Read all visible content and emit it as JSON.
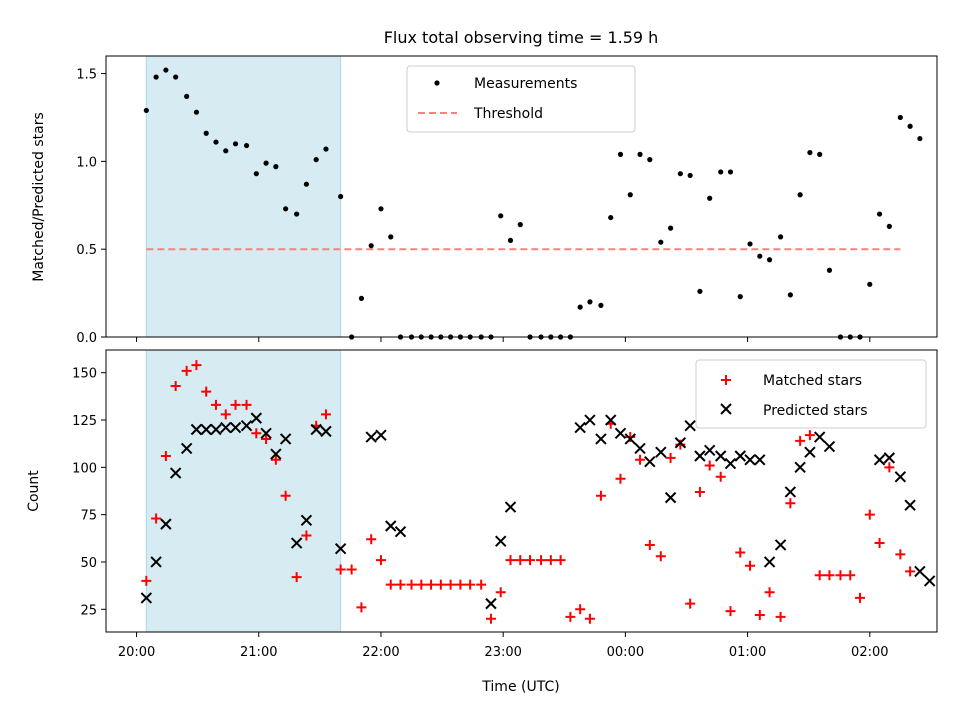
{
  "chart_data": {
    "title": "Flux total observing time = 1.59 h",
    "xlabel": "Time (UTC)",
    "x_ticks": [
      "20:00",
      "21:00",
      "22:00",
      "23:00",
      "00:00",
      "01:00",
      "02:00"
    ],
    "x_tick_hours": [
      0,
      1,
      2,
      3,
      4,
      5,
      6
    ],
    "x_note": "x values are hours after 20:00 UTC",
    "xlim": [
      -0.25,
      6.55
    ],
    "shaded_span": [
      0.08,
      1.67
    ],
    "colors": {
      "shade": "#add8e6",
      "matched": "#ff0000",
      "predicted": "#000000",
      "threshold": "#ff7f7f",
      "measurement": "#000000"
    },
    "panels": [
      {
        "type": "scatter",
        "ylabel": "Matched/Predicted stars",
        "ylim": [
          0,
          1.6
        ],
        "y_ticks": [
          0.0,
          0.5,
          1.0,
          1.5
        ],
        "y_tick_labels": [
          "0.0",
          "0.5",
          "1.0",
          "1.5"
        ],
        "legend_position": "top-center",
        "threshold": {
          "name": "Threshold",
          "y": 0.5,
          "x_range": [
            0.08,
            6.25
          ]
        },
        "series": [
          {
            "name": "Measurements",
            "points": [
              [
                0.08,
                1.29
              ],
              [
                0.16,
                1.48
              ],
              [
                0.24,
                1.52
              ],
              [
                0.32,
                1.48
              ],
              [
                0.41,
                1.37
              ],
              [
                0.49,
                1.28
              ],
              [
                0.57,
                1.16
              ],
              [
                0.65,
                1.11
              ],
              [
                0.73,
                1.06
              ],
              [
                0.81,
                1.1
              ],
              [
                0.9,
                1.09
              ],
              [
                0.98,
                0.93
              ],
              [
                1.06,
                0.99
              ],
              [
                1.14,
                0.97
              ],
              [
                1.22,
                0.73
              ],
              [
                1.31,
                0.7
              ],
              [
                1.39,
                0.87
              ],
              [
                1.47,
                1.01
              ],
              [
                1.55,
                1.07
              ],
              [
                1.67,
                0.8
              ],
              [
                1.76,
                0
              ],
              [
                1.84,
                0.22
              ],
              [
                1.92,
                0.52
              ],
              [
                2,
                0.73
              ],
              [
                2.08,
                0.57
              ],
              [
                2.16,
                0
              ],
              [
                2.25,
                0
              ],
              [
                2.33,
                0
              ],
              [
                2.41,
                0
              ],
              [
                2.49,
                0
              ],
              [
                2.57,
                0
              ],
              [
                2.65,
                0
              ],
              [
                2.73,
                0
              ],
              [
                2.82,
                0
              ],
              [
                2.9,
                0
              ],
              [
                2.98,
                0.69
              ],
              [
                3.06,
                0.55
              ],
              [
                3.14,
                0.64
              ],
              [
                3.22,
                0
              ],
              [
                3.31,
                0
              ],
              [
                3.39,
                0
              ],
              [
                3.47,
                0
              ],
              [
                3.55,
                0
              ],
              [
                3.63,
                0.17
              ],
              [
                3.71,
                0.2
              ],
              [
                3.8,
                0.18
              ],
              [
                3.88,
                0.68
              ],
              [
                3.96,
                1.04
              ],
              [
                4.04,
                0.81
              ],
              [
                4.12,
                1.04
              ],
              [
                4.2,
                1.01
              ],
              [
                4.29,
                0.54
              ],
              [
                4.37,
                0.62
              ],
              [
                4.45,
                0.93
              ],
              [
                4.53,
                0.92
              ],
              [
                4.61,
                0.26
              ],
              [
                4.69,
                0.79
              ],
              [
                4.78,
                0.94
              ],
              [
                4.86,
                0.94
              ],
              [
                4.94,
                0.23
              ],
              [
                5.02,
                0.53
              ],
              [
                5.1,
                0.46
              ],
              [
                5.18,
                0.44
              ],
              [
                5.27,
                0.57
              ],
              [
                5.35,
                0.24
              ],
              [
                5.43,
                0.81
              ],
              [
                5.51,
                1.05
              ],
              [
                5.59,
                1.04
              ],
              [
                5.67,
                0.38
              ],
              [
                5.76,
                0
              ],
              [
                5.84,
                0
              ],
              [
                5.92,
                0
              ],
              [
                6,
                0.3
              ],
              [
                6.08,
                0.7
              ],
              [
                6.16,
                0.63
              ],
              [
                6.25,
                1.25
              ],
              [
                6.33,
                1.2
              ],
              [
                6.41,
                1.13
              ]
            ]
          }
        ]
      },
      {
        "type": "scatter",
        "ylabel": "Count",
        "ylim": [
          13,
          162
        ],
        "y_ticks": [
          25,
          50,
          75,
          100,
          125,
          150
        ],
        "y_tick_labels": [
          "25",
          "50",
          "75",
          "100",
          "125",
          "150"
        ],
        "legend_position": "top-right",
        "series": [
          {
            "name": "Matched stars",
            "marker": "plus",
            "points": [
              [
                0.08,
                40
              ],
              [
                0.16,
                73
              ],
              [
                0.24,
                106
              ],
              [
                0.32,
                143
              ],
              [
                0.41,
                151
              ],
              [
                0.49,
                154
              ],
              [
                0.57,
                140
              ],
              [
                0.65,
                133
              ],
              [
                0.73,
                128
              ],
              [
                0.81,
                133
              ],
              [
                0.9,
                133
              ],
              [
                0.98,
                118
              ],
              [
                1.06,
                115
              ],
              [
                1.14,
                104
              ],
              [
                1.22,
                85
              ],
              [
                1.31,
                42
              ],
              [
                1.39,
                64
              ],
              [
                1.47,
                122
              ],
              [
                1.55,
                128
              ],
              [
                1.67,
                46
              ],
              [
                1.76,
                46
              ],
              [
                1.84,
                26
              ],
              [
                1.92,
                62
              ],
              [
                2,
                51
              ],
              [
                2.08,
                38
              ],
              [
                2.16,
                38
              ],
              [
                2.25,
                38
              ],
              [
                2.33,
                38
              ],
              [
                2.41,
                38
              ],
              [
                2.49,
                38
              ],
              [
                2.57,
                38
              ],
              [
                2.65,
                38
              ],
              [
                2.73,
                38
              ],
              [
                2.82,
                38
              ],
              [
                2.9,
                20
              ],
              [
                2.98,
                34
              ],
              [
                3.06,
                51
              ],
              [
                3.14,
                51
              ],
              [
                3.22,
                51
              ],
              [
                3.31,
                51
              ],
              [
                3.39,
                51
              ],
              [
                3.47,
                51
              ],
              [
                3.55,
                21
              ],
              [
                3.63,
                25
              ],
              [
                3.71,
                20
              ],
              [
                3.8,
                85
              ],
              [
                3.88,
                123
              ],
              [
                3.96,
                94
              ],
              [
                4.04,
                116
              ],
              [
                4.12,
                104
              ],
              [
                4.2,
                59
              ],
              [
                4.29,
                53
              ],
              [
                4.37,
                105
              ],
              [
                4.45,
                112
              ],
              [
                4.53,
                28
              ],
              [
                4.61,
                87
              ],
              [
                4.69,
                101
              ],
              [
                4.78,
                95
              ],
              [
                4.86,
                24
              ],
              [
                4.94,
                55
              ],
              [
                5.02,
                48
              ],
              [
                5.1,
                22
              ],
              [
                5.18,
                34
              ],
              [
                5.27,
                21
              ],
              [
                5.35,
                81
              ],
              [
                5.43,
                114
              ],
              [
                5.51,
                117
              ],
              [
                5.59,
                43
              ],
              [
                5.67,
                43
              ],
              [
                5.76,
                43
              ],
              [
                5.84,
                43
              ],
              [
                5.92,
                31
              ],
              [
                6,
                75
              ],
              [
                6.08,
                60
              ],
              [
                6.16,
                100
              ],
              [
                6.25,
                54
              ],
              [
                6.33,
                45
              ]
            ]
          },
          {
            "name": "Predicted stars",
            "marker": "x",
            "points": [
              [
                0.08,
                31
              ],
              [
                0.16,
                50
              ],
              [
                0.24,
                70
              ],
              [
                0.32,
                97
              ],
              [
                0.41,
                110
              ],
              [
                0.49,
                120
              ],
              [
                0.57,
                120
              ],
              [
                0.65,
                120
              ],
              [
                0.73,
                121
              ],
              [
                0.81,
                121
              ],
              [
                0.9,
                122
              ],
              [
                0.98,
                126
              ],
              [
                1.06,
                118
              ],
              [
                1.14,
                107
              ],
              [
                1.22,
                115
              ],
              [
                1.31,
                60
              ],
              [
                1.39,
                72
              ],
              [
                1.47,
                120
              ],
              [
                1.55,
                119
              ],
              [
                1.67,
                57
              ],
              [
                1.92,
                116
              ],
              [
                2,
                117
              ],
              [
                2.08,
                69
              ],
              [
                2.16,
                66
              ],
              [
                2.9,
                28
              ],
              [
                2.98,
                61
              ],
              [
                3.06,
                79
              ],
              [
                3.63,
                121
              ],
              [
                3.71,
                125
              ],
              [
                3.8,
                115
              ],
              [
                3.88,
                125
              ],
              [
                3.96,
                118
              ],
              [
                4.04,
                115
              ],
              [
                4.12,
                110
              ],
              [
                4.2,
                103
              ],
              [
                4.29,
                108
              ],
              [
                4.37,
                84
              ],
              [
                4.45,
                113
              ],
              [
                4.53,
                122
              ],
              [
                4.61,
                106
              ],
              [
                4.69,
                109
              ],
              [
                4.78,
                106
              ],
              [
                4.86,
                102
              ],
              [
                4.94,
                106
              ],
              [
                5.02,
                104
              ],
              [
                5.1,
                104
              ],
              [
                5.18,
                50
              ],
              [
                5.27,
                59
              ],
              [
                5.35,
                87
              ],
              [
                5.43,
                100
              ],
              [
                5.51,
                108
              ],
              [
                5.59,
                116
              ],
              [
                5.67,
                111
              ],
              [
                6.08,
                104
              ],
              [
                6.16,
                105
              ],
              [
                6.25,
                95
              ],
              [
                6.33,
                80
              ],
              [
                6.41,
                45
              ],
              [
                6.49,
                40
              ]
            ]
          }
        ]
      }
    ]
  }
}
